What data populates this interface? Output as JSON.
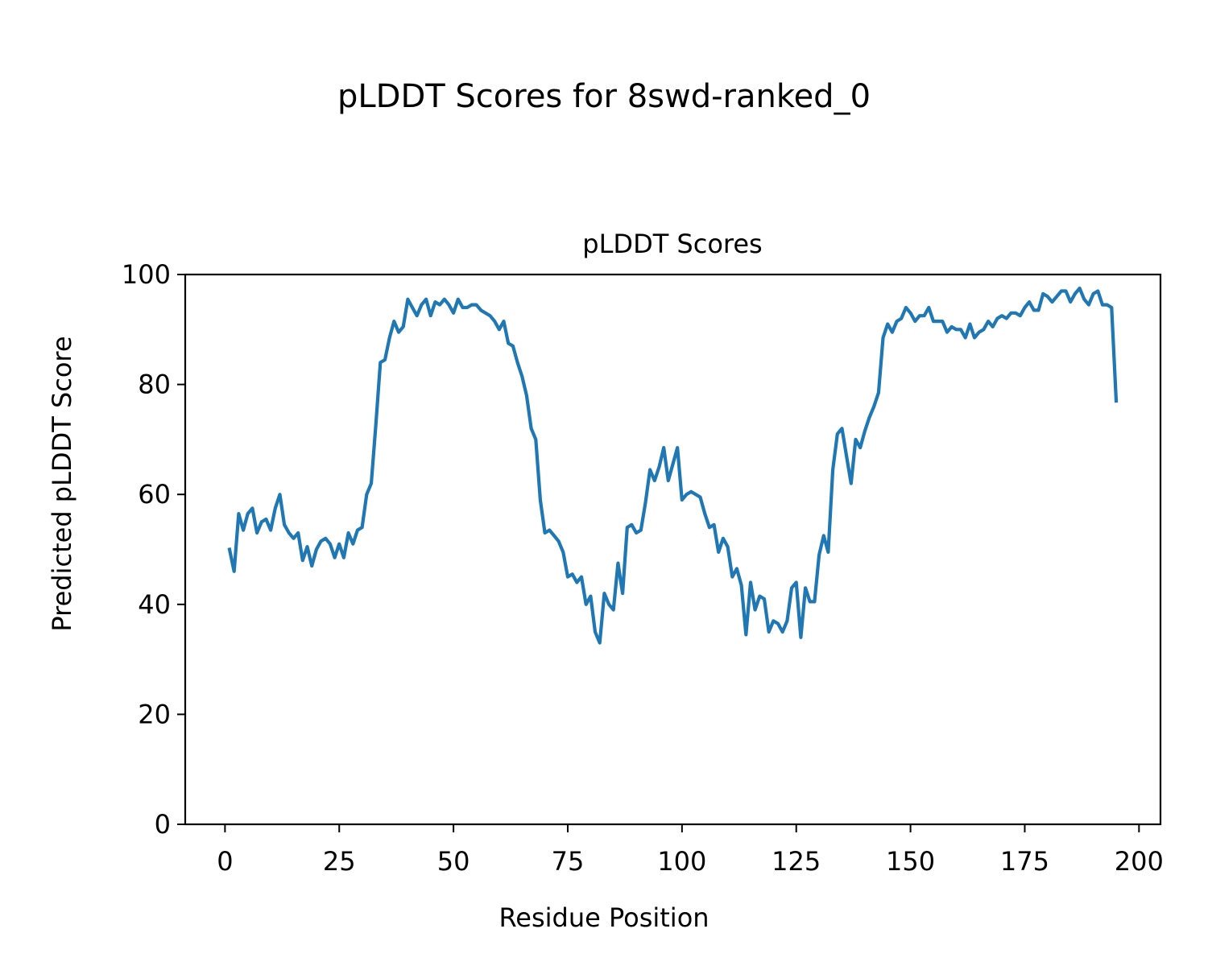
{
  "figure": {
    "suptitle": "pLDDT Scores for 8swd-ranked_0"
  },
  "chart_data": {
    "type": "line",
    "title": "pLDDT Scores",
    "xlabel": "Residue Position",
    "ylabel": "Predicted pLDDT Score",
    "xlim": [
      -8.7,
      204.7
    ],
    "ylim": [
      0,
      100
    ],
    "xticks": [
      0,
      25,
      50,
      75,
      100,
      125,
      150,
      175,
      200
    ],
    "yticks": [
      0,
      20,
      40,
      60,
      80,
      100
    ],
    "grid": false,
    "legend": null,
    "line_color": "#1f77b4",
    "series": [
      {
        "x": [
          1,
          2,
          3,
          4,
          5,
          6,
          7,
          8,
          9,
          10,
          11,
          12,
          13,
          14,
          15,
          16,
          17,
          18,
          19,
          20,
          21,
          22,
          23,
          24,
          25,
          26,
          27,
          28,
          29,
          30,
          31,
          32,
          33,
          34,
          35,
          36,
          37,
          38,
          39,
          40,
          41,
          42,
          43,
          44,
          45,
          46,
          47,
          48,
          49,
          50,
          51,
          52,
          53,
          54,
          55,
          56,
          57,
          58,
          59,
          60,
          61,
          62,
          63,
          64,
          65,
          66,
          67,
          68,
          69,
          70,
          71,
          72,
          73,
          74,
          75,
          76,
          77,
          78,
          79,
          80,
          81,
          82,
          83,
          84,
          85,
          86,
          87,
          88,
          89,
          90,
          91,
          92,
          93,
          94,
          95,
          96,
          97,
          98,
          99,
          100,
          101,
          102,
          103,
          104,
          105,
          106,
          107,
          108,
          109,
          110,
          111,
          112,
          113,
          114,
          115,
          116,
          117,
          118,
          119,
          120,
          121,
          122,
          123,
          124,
          125,
          126,
          127,
          128,
          129,
          130,
          131,
          132,
          133,
          134,
          135,
          136,
          137,
          138,
          139,
          140,
          141,
          142,
          143,
          144,
          145,
          146,
          147,
          148,
          149,
          150,
          151,
          152,
          153,
          154,
          155,
          156,
          157,
          158,
          159,
          160,
          161,
          162,
          163,
          164,
          165,
          166,
          167,
          168,
          169,
          170,
          171,
          172,
          173,
          174,
          175,
          176,
          177,
          178,
          179,
          180,
          181,
          182,
          183,
          184,
          185,
          186,
          187,
          188,
          189,
          190,
          191,
          192,
          193,
          194,
          195
        ],
        "y": [
          50.0,
          46.0,
          56.5,
          53.5,
          56.5,
          57.5,
          53.0,
          55.0,
          55.5,
          53.5,
          57.5,
          60.0,
          54.5,
          53.0,
          52.0,
          53.0,
          48.0,
          50.5,
          47.0,
          50.0,
          51.5,
          52.0,
          51.0,
          48.5,
          51.0,
          48.5,
          53.0,
          51.0,
          53.5,
          54.0,
          60.0,
          62.0,
          72.5,
          84.0,
          84.5,
          88.5,
          91.5,
          89.5,
          90.5,
          95.5,
          94.0,
          92.5,
          94.5,
          95.5,
          92.5,
          95.0,
          94.5,
          95.5,
          94.5,
          93.0,
          95.5,
          94.0,
          94.0,
          94.5,
          94.5,
          93.5,
          93.0,
          92.5,
          91.5,
          90.0,
          91.5,
          87.5,
          87.0,
          84.0,
          81.5,
          78.0,
          72.0,
          70.0,
          59.0,
          53.0,
          53.5,
          52.5,
          51.5,
          49.5,
          45.0,
          45.5,
          44.0,
          45.0,
          40.0,
          41.5,
          35.0,
          33.0,
          42.0,
          40.0,
          39.0,
          47.5,
          42.0,
          54.0,
          54.5,
          53.0,
          53.5,
          58.5,
          64.5,
          62.5,
          65.0,
          68.5,
          62.5,
          65.5,
          68.5,
          59.0,
          60.0,
          60.5,
          60.0,
          59.5,
          56.5,
          54.0,
          54.5,
          49.5,
          52.0,
          50.5,
          45.0,
          46.5,
          43.5,
          34.5,
          44.0,
          39.0,
          41.5,
          41.0,
          35.0,
          37.0,
          36.5,
          35.0,
          37.0,
          43.0,
          44.0,
          34.0,
          43.0,
          40.5,
          40.5,
          49.0,
          52.5,
          49.5,
          64.5,
          71.0,
          72.0,
          67.0,
          62.0,
          70.0,
          68.5,
          71.5,
          74.0,
          76.0,
          78.5,
          88.5,
          91.0,
          89.5,
          91.5,
          92.0,
          94.0,
          93.0,
          91.5,
          92.5,
          92.5,
          94.0,
          91.5,
          91.5,
          91.5,
          89.5,
          90.5,
          90.0,
          90.0,
          88.5,
          91.0,
          88.5,
          89.5,
          90.0,
          91.5,
          90.5,
          92.0,
          92.5,
          92.0,
          93.0,
          93.0,
          92.5,
          94.0,
          95.0,
          93.5,
          93.5,
          96.5,
          96.0,
          95.0,
          96.0,
          97.0,
          97.0,
          95.0,
          96.5,
          97.5,
          95.5,
          94.5,
          96.5,
          97.0,
          94.5,
          94.5,
          94.0,
          77.0
        ]
      }
    ]
  }
}
